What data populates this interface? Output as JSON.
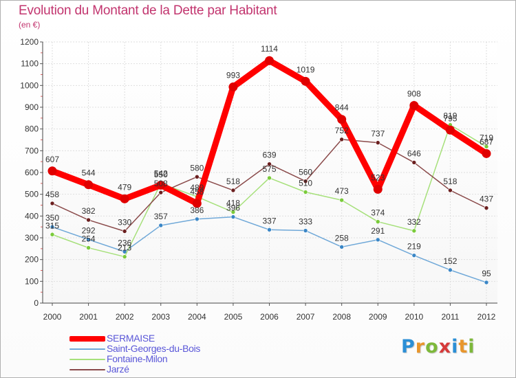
{
  "title": "Evolution du Montant de la Dette par Habitant",
  "subtitle": "(en €)",
  "logo": {
    "text": "Proxiti",
    "colors": [
      "#2b8fd6",
      "#e8962d",
      "#7db83a",
      "#d63a3a",
      "#2b8fd6",
      "#e8962d",
      "#7db83a"
    ]
  },
  "chart_data": {
    "type": "line",
    "title": "Evolution du Montant de la Dette par Habitant",
    "subtitle": "(en €)",
    "x": [
      "2000",
      "2001",
      "2002",
      "2003",
      "2004",
      "2005",
      "2006",
      "2007",
      "2008",
      "2009",
      "2010",
      "2011",
      "2012"
    ],
    "ylim": [
      0,
      1200
    ],
    "yticks": [
      0,
      100,
      200,
      300,
      400,
      500,
      600,
      700,
      800,
      900,
      1000,
      1100,
      1200
    ],
    "grid": true,
    "legend_position": "bottom-left",
    "series": [
      {
        "name": "SERMAISE",
        "color": "#ff0000",
        "dot_color": "#e00000",
        "width": 9,
        "values": [
          607,
          544,
          479,
          542,
          458,
          993,
          1114,
          1019,
          844,
          523,
          908,
          795,
          687
        ]
      },
      {
        "name": "Saint-Georges-du-Bois",
        "color": "#6fa8d8",
        "dot_color": "#3a86c6",
        "width": 1.5,
        "values": [
          350,
          292,
          236,
          357,
          386,
          396,
          337,
          333,
          258,
          291,
          219,
          152,
          95
        ]
      },
      {
        "name": "Fontaine-Milon",
        "color": "#a6e07a",
        "dot_color": "#7acb3a",
        "width": 1.5,
        "values": [
          315,
          254,
          213,
          550,
          489,
          418,
          575,
          510,
          473,
          374,
          332,
          819,
          719
        ]
      },
      {
        "name": "Jarzé",
        "color": "#8a4a4a",
        "dot_color": "#6b1f1f",
        "width": 1.5,
        "values": [
          458,
          382,
          330,
          508,
          580,
          518,
          639,
          560,
          752,
          737,
          646,
          518,
          437
        ]
      }
    ],
    "labels": [
      [
        "607",
        "544",
        "479",
        "542",
        "458",
        "993",
        "1114",
        "1019",
        "844",
        "523",
        "908",
        "795",
        "687"
      ],
      [
        "350",
        "292",
        "236",
        "357",
        "386",
        "396",
        "337",
        "333",
        "258",
        "291",
        "219",
        "152",
        "95"
      ],
      [
        "315",
        "254",
        "213",
        "550",
        "489",
        "418",
        "575",
        "510",
        "473",
        "374",
        "332",
        "819",
        "719"
      ],
      [
        "458",
        "382",
        "330",
        "508",
        "580",
        "518",
        "639",
        "560",
        "752",
        "737",
        "646",
        "518",
        "437"
      ]
    ]
  }
}
